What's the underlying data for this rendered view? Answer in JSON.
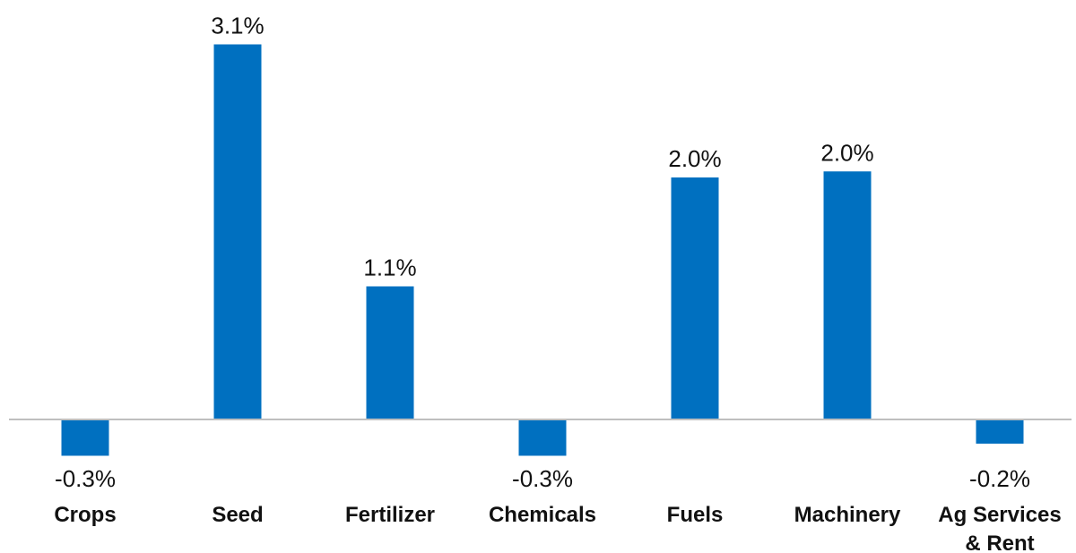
{
  "chart_data": {
    "type": "bar",
    "categories": [
      "Crops",
      "Seed",
      "Fertilizer",
      "Chemicals",
      "Fuels",
      "Machinery",
      "Ag Services & Rent"
    ],
    "category_lines": [
      [
        "Crops"
      ],
      [
        "Seed"
      ],
      [
        "Fertilizer"
      ],
      [
        "Chemicals"
      ],
      [
        "Fuels"
      ],
      [
        "Machinery"
      ],
      [
        "Ag Services",
        "& Rent"
      ]
    ],
    "values": [
      -0.3,
      3.1,
      1.1,
      -0.3,
      2.0,
      2.05,
      -0.2
    ],
    "data_labels": [
      "-0.3%",
      "3.1%",
      "1.1%",
      "-0.3%",
      "2.0%",
      "2.0%",
      "-0.2%"
    ],
    "ylim": [
      -0.4,
      3.4
    ],
    "grid": false,
    "legend": "none",
    "colors": {
      "bar": "#0070C0",
      "axis": "#BFBFBF",
      "text": "#111111"
    }
  }
}
